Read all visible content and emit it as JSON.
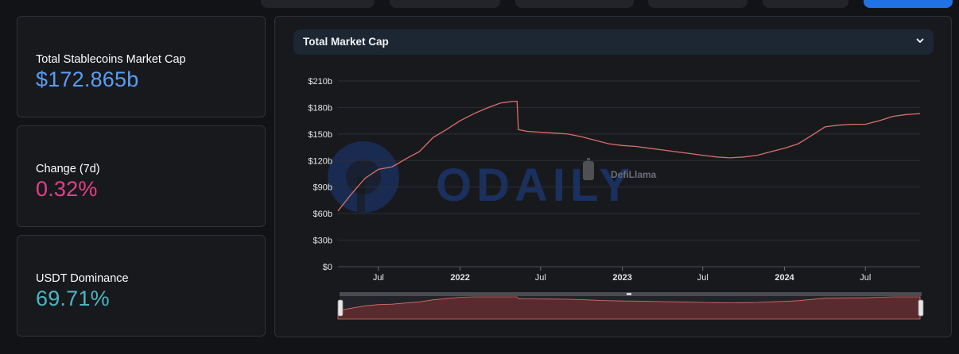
{
  "stats": {
    "market_cap_label": "Total Stablecoins Market Cap",
    "market_cap_value": "$172.865b",
    "change_label": "Change (7d)",
    "change_value": "0.32%",
    "dominance_label": "USDT Dominance",
    "dominance_value": "69.71%"
  },
  "colors": {
    "market_cap_value": "#5a9cf2",
    "change_value": "#e2418a",
    "dominance_value": "#4bb7c4",
    "line": "#d9706b",
    "accent_button": "#2172e5"
  },
  "chart_selector": {
    "selected": "Total Market Cap",
    "icon": "chevron-down-icon"
  },
  "watermark": {
    "odaily": "ODAILY",
    "defillama": "DefiLlama"
  },
  "chart_data": {
    "type": "line",
    "title": "",
    "xlabel": "",
    "ylabel": "",
    "ylim": [
      0,
      210
    ],
    "yticks": [
      0,
      30,
      60,
      90,
      120,
      150,
      180,
      210
    ],
    "ytick_labels": [
      "$0",
      "$30b",
      "$60b",
      "$90b",
      "$120b",
      "$150b",
      "$180b",
      "$210b"
    ],
    "xticks": [
      {
        "date": "2021-07-01",
        "label": "Jul",
        "bold": false
      },
      {
        "date": "2022-01-01",
        "label": "2022",
        "bold": true
      },
      {
        "date": "2022-07-01",
        "label": "Jul",
        "bold": false
      },
      {
        "date": "2023-01-01",
        "label": "2023",
        "bold": true
      },
      {
        "date": "2023-07-01",
        "label": "Jul",
        "bold": false
      },
      {
        "date": "2024-01-01",
        "label": "2024",
        "bold": true
      },
      {
        "date": "2024-07-01",
        "label": "Jul",
        "bold": false
      }
    ],
    "grid": true,
    "legend": "none",
    "series": [
      {
        "x": [
          "2021-04-01",
          "2021-05-01",
          "2021-06-01",
          "2021-07-01",
          "2021-08-01",
          "2021-09-01",
          "2021-10-01",
          "2021-11-01",
          "2021-12-01",
          "2022-01-01",
          "2022-02-01",
          "2022-03-01",
          "2022-04-01",
          "2022-05-01",
          "2022-05-09",
          "2022-05-12",
          "2022-06-01",
          "2022-07-01",
          "2022-08-01",
          "2022-09-01",
          "2022-10-01",
          "2022-11-01",
          "2022-12-01",
          "2023-01-01",
          "2023-02-01",
          "2023-03-01",
          "2023-04-01",
          "2023-05-01",
          "2023-06-01",
          "2023-07-01",
          "2023-08-01",
          "2023-09-01",
          "2023-10-01",
          "2023-11-01",
          "2023-12-01",
          "2024-01-01",
          "2024-02-01",
          "2024-03-01",
          "2024-04-01",
          "2024-05-01",
          "2024-06-01",
          "2024-07-01",
          "2024-08-01",
          "2024-09-01",
          "2024-10-01",
          "2024-11-01"
        ],
        "values": [
          63,
          82,
          100,
          110,
          113,
          122,
          130,
          146,
          155,
          165,
          173,
          179,
          185,
          187,
          187,
          155,
          153,
          152,
          151,
          150,
          147,
          143,
          139,
          137,
          136,
          134,
          132,
          130,
          128,
          126,
          124,
          123,
          124,
          126,
          130,
          134,
          139,
          148,
          158,
          160,
          161,
          161,
          165,
          170,
          172,
          173
        ]
      }
    ]
  }
}
